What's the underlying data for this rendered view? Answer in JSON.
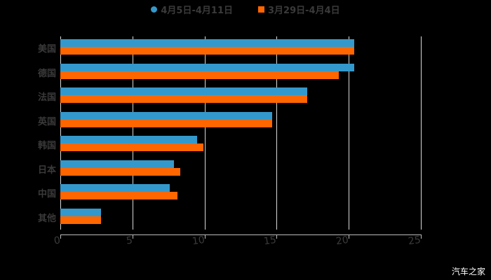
{
  "chart_data": {
    "type": "bar",
    "orientation": "horizontal",
    "title": "",
    "xlabel": "",
    "ylabel": "",
    "categories": [
      "美国",
      "德国",
      "法国",
      "英国",
      "韩国",
      "日本",
      "中国",
      "其他"
    ],
    "series": [
      {
        "name": "4月5日-4月11日",
        "color": "#3399cc",
        "values": [
          20.4,
          20.4,
          17.1,
          14.7,
          9.5,
          7.9,
          7.6,
          2.8
        ]
      },
      {
        "name": "3月29日-4月4日",
        "color": "#ff6600",
        "values": [
          20.4,
          19.3,
          17.1,
          14.7,
          9.9,
          8.3,
          8.1,
          2.8
        ]
      }
    ],
    "xlim": [
      0,
      25
    ],
    "xticks": [
      "0",
      "5",
      "10",
      "15",
      "20",
      "25"
    ],
    "grid": true,
    "legend_position": "top"
  },
  "legend": {
    "series1": "4月5日-4月11日",
    "series2": "3月29日-4月4日"
  },
  "watermark": "汽车之家"
}
